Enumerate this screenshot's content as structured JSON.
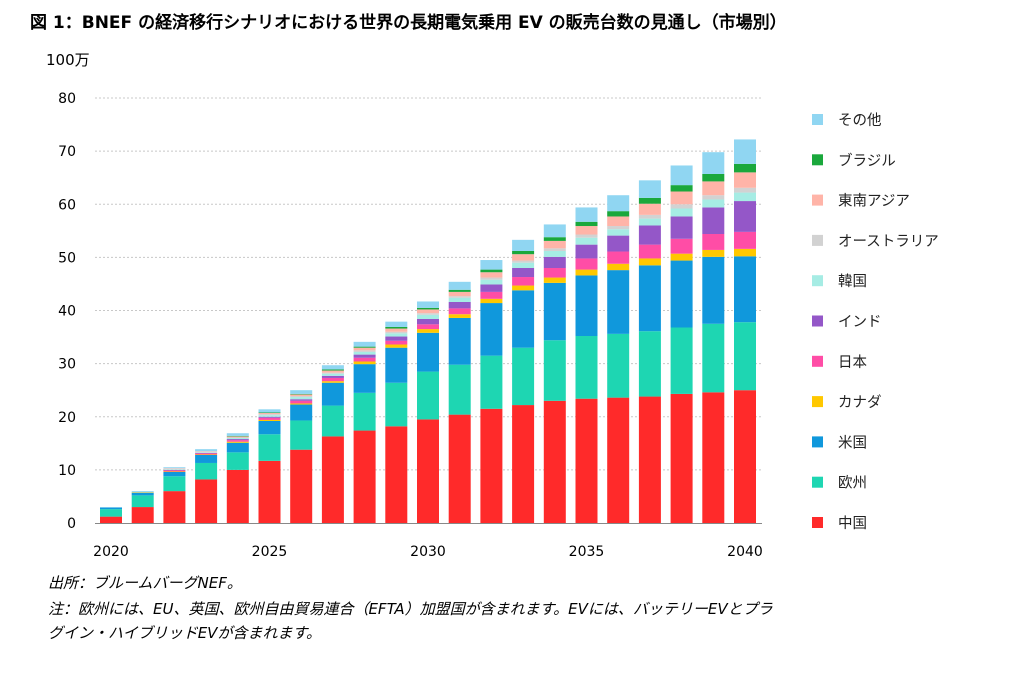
{
  "title": "図 1：BNEF の経済移行シナリオにおける世界の長期電気乗用 EV の販売台数の見通し（市場別）",
  "source": "出所：ブルームバーグNEF。",
  "note_line1": "注：欧州には、EU、英国、欧州自由貿易連合（EFTA）加盟国が含まれます。EVには、バッテリーEVとプラ",
  "note_line2": "グイン・ハイブリッドEVが含まれます。",
  "chart_data": {
    "type": "bar",
    "stacked": true,
    "unit": "100万",
    "ylim": [
      0,
      80
    ],
    "yticks": [
      0,
      10,
      20,
      30,
      40,
      50,
      60,
      70,
      80
    ],
    "xtick_labels": [
      "2020",
      "2025",
      "2030",
      "2035",
      "2040"
    ],
    "grid": true,
    "legend_position": "right",
    "categories": [
      "2020",
      "2021",
      "2022",
      "2023",
      "2024",
      "2025",
      "2026",
      "2027",
      "2028",
      "2029",
      "2030",
      "2031",
      "2032",
      "2033",
      "2034",
      "2035",
      "2036",
      "2037",
      "2038",
      "2039",
      "2040"
    ],
    "series": [
      {
        "name": "中国",
        "color": "#ff2a2a",
        "values": [
          1.2,
          3.0,
          6.0,
          8.2,
          10.0,
          11.7,
          13.8,
          16.3,
          17.4,
          18.2,
          19.5,
          20.4,
          21.5,
          22.2,
          23.0,
          23.4,
          23.6,
          23.8,
          24.3,
          24.6,
          25.0
        ]
      },
      {
        "name": "欧州",
        "color": "#1ed6b2",
        "values": [
          1.4,
          2.2,
          2.8,
          3.1,
          3.3,
          5.0,
          5.5,
          5.8,
          7.1,
          8.2,
          9.0,
          9.4,
          10.0,
          10.8,
          11.4,
          11.8,
          12.0,
          12.3,
          12.5,
          12.9,
          12.8
        ]
      },
      {
        "name": "米国",
        "color": "#1098dc",
        "values": [
          0.3,
          0.5,
          0.8,
          1.5,
          1.8,
          2.5,
          3.0,
          4.3,
          5.4,
          6.6,
          7.3,
          8.8,
          9.9,
          10.8,
          10.8,
          11.4,
          12.0,
          12.4,
          12.6,
          12.6,
          12.4
        ]
      },
      {
        "name": "カナダ",
        "color": "#ffc800",
        "values": [
          0.0,
          0.1,
          0.1,
          0.1,
          0.2,
          0.2,
          0.2,
          0.3,
          0.5,
          0.6,
          0.7,
          0.7,
          0.8,
          0.9,
          1.0,
          1.1,
          1.2,
          1.3,
          1.3,
          1.3,
          1.4
        ]
      },
      {
        "name": "日本",
        "color": "#ff4da6",
        "values": [
          0.0,
          0.0,
          0.2,
          0.2,
          0.3,
          0.4,
          0.5,
          0.6,
          0.7,
          0.7,
          0.9,
          1.1,
          1.3,
          1.6,
          1.8,
          2.1,
          2.3,
          2.6,
          2.8,
          3.0,
          3.2
        ]
      },
      {
        "name": "インド",
        "color": "#9457c8",
        "values": [
          0.0,
          0.0,
          0.1,
          0.1,
          0.2,
          0.2,
          0.3,
          0.4,
          0.6,
          0.8,
          1.0,
          1.2,
          1.4,
          1.7,
          2.1,
          2.6,
          3.0,
          3.6,
          4.2,
          5.0,
          5.8
        ]
      },
      {
        "name": "韓国",
        "color": "#a6ece4",
        "values": [
          0.0,
          0.0,
          0.1,
          0.1,
          0.2,
          0.3,
          0.4,
          0.4,
          0.5,
          0.6,
          0.8,
          0.8,
          0.9,
          1.0,
          1.1,
          1.3,
          1.2,
          1.3,
          1.5,
          1.5,
          1.6
        ]
      },
      {
        "name": "オーストラリア",
        "color": "#d2d2d2",
        "values": [
          0.0,
          0.0,
          0.1,
          0.1,
          0.1,
          0.2,
          0.2,
          0.2,
          0.3,
          0.3,
          0.3,
          0.3,
          0.4,
          0.4,
          0.5,
          0.6,
          0.6,
          0.7,
          0.8,
          0.8,
          0.9
        ]
      },
      {
        "name": "東南アジア",
        "color": "#ffb4a8",
        "values": [
          0.0,
          0.0,
          0.1,
          0.1,
          0.2,
          0.2,
          0.3,
          0.4,
          0.5,
          0.6,
          0.7,
          0.8,
          1.0,
          1.2,
          1.4,
          1.6,
          1.8,
          2.1,
          2.4,
          2.6,
          2.9
        ]
      },
      {
        "name": "ブラジル",
        "color": "#1aa83c",
        "values": [
          0.0,
          0.0,
          0.0,
          0.0,
          0.1,
          0.1,
          0.1,
          0.2,
          0.2,
          0.3,
          0.3,
          0.4,
          0.5,
          0.6,
          0.7,
          0.8,
          1.0,
          1.1,
          1.2,
          1.4,
          1.6
        ]
      },
      {
        "name": "その他",
        "color": "#90d6f2",
        "values": [
          0.1,
          0.2,
          0.2,
          0.4,
          0.5,
          0.6,
          0.7,
          0.8,
          0.9,
          1.0,
          1.2,
          1.5,
          1.8,
          2.1,
          2.4,
          2.7,
          3.0,
          3.3,
          3.7,
          4.1,
          4.6
        ]
      }
    ]
  }
}
